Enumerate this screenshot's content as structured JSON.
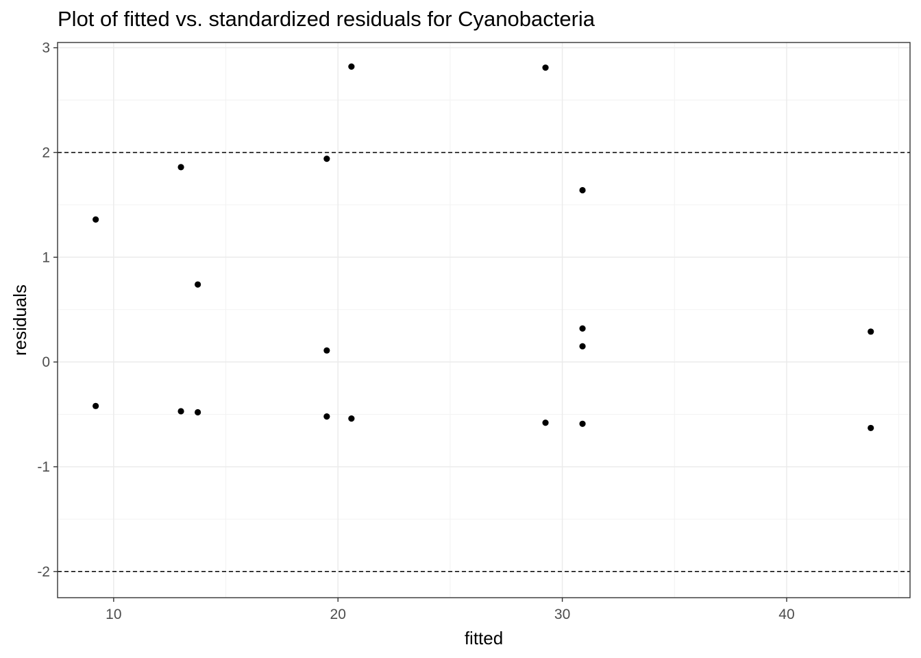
{
  "chart_data": {
    "type": "scatter",
    "title": "Plot of fitted vs. standardized residuals for Cyanobacteria",
    "xlabel": "fitted",
    "ylabel": "residuals",
    "xlim": [
      7.5,
      45.5
    ],
    "ylim": [
      -2.25,
      3.05
    ],
    "x_ticks": [
      10,
      20,
      30,
      40
    ],
    "x_tick_labels": [
      "10",
      "20",
      "30",
      "40"
    ],
    "y_ticks": [
      -2,
      -1,
      0,
      1,
      2,
      3
    ],
    "y_tick_labels": [
      "-2",
      "-1",
      "0",
      "1",
      "2",
      "3"
    ],
    "grid": true,
    "reference_lines": [
      2,
      -2
    ],
    "points_color": "#000000",
    "points": [
      {
        "x": 9.2,
        "y": 1.36
      },
      {
        "x": 9.2,
        "y": -0.42
      },
      {
        "x": 13.0,
        "y": 1.86
      },
      {
        "x": 13.0,
        "y": -0.47
      },
      {
        "x": 13.75,
        "y": 0.74
      },
      {
        "x": 13.75,
        "y": -0.48
      },
      {
        "x": 19.5,
        "y": 1.94
      },
      {
        "x": 19.5,
        "y": 0.11
      },
      {
        "x": 19.5,
        "y": -0.52
      },
      {
        "x": 20.6,
        "y": 2.82
      },
      {
        "x": 20.6,
        "y": -0.54
      },
      {
        "x": 29.25,
        "y": 2.81
      },
      {
        "x": 29.25,
        "y": -0.58
      },
      {
        "x": 30.9,
        "y": 1.64
      },
      {
        "x": 30.9,
        "y": 0.32
      },
      {
        "x": 30.9,
        "y": 0.15
      },
      {
        "x": 30.9,
        "y": -0.59
      },
      {
        "x": 43.75,
        "y": 0.29
      },
      {
        "x": 43.75,
        "y": -0.63
      }
    ]
  }
}
